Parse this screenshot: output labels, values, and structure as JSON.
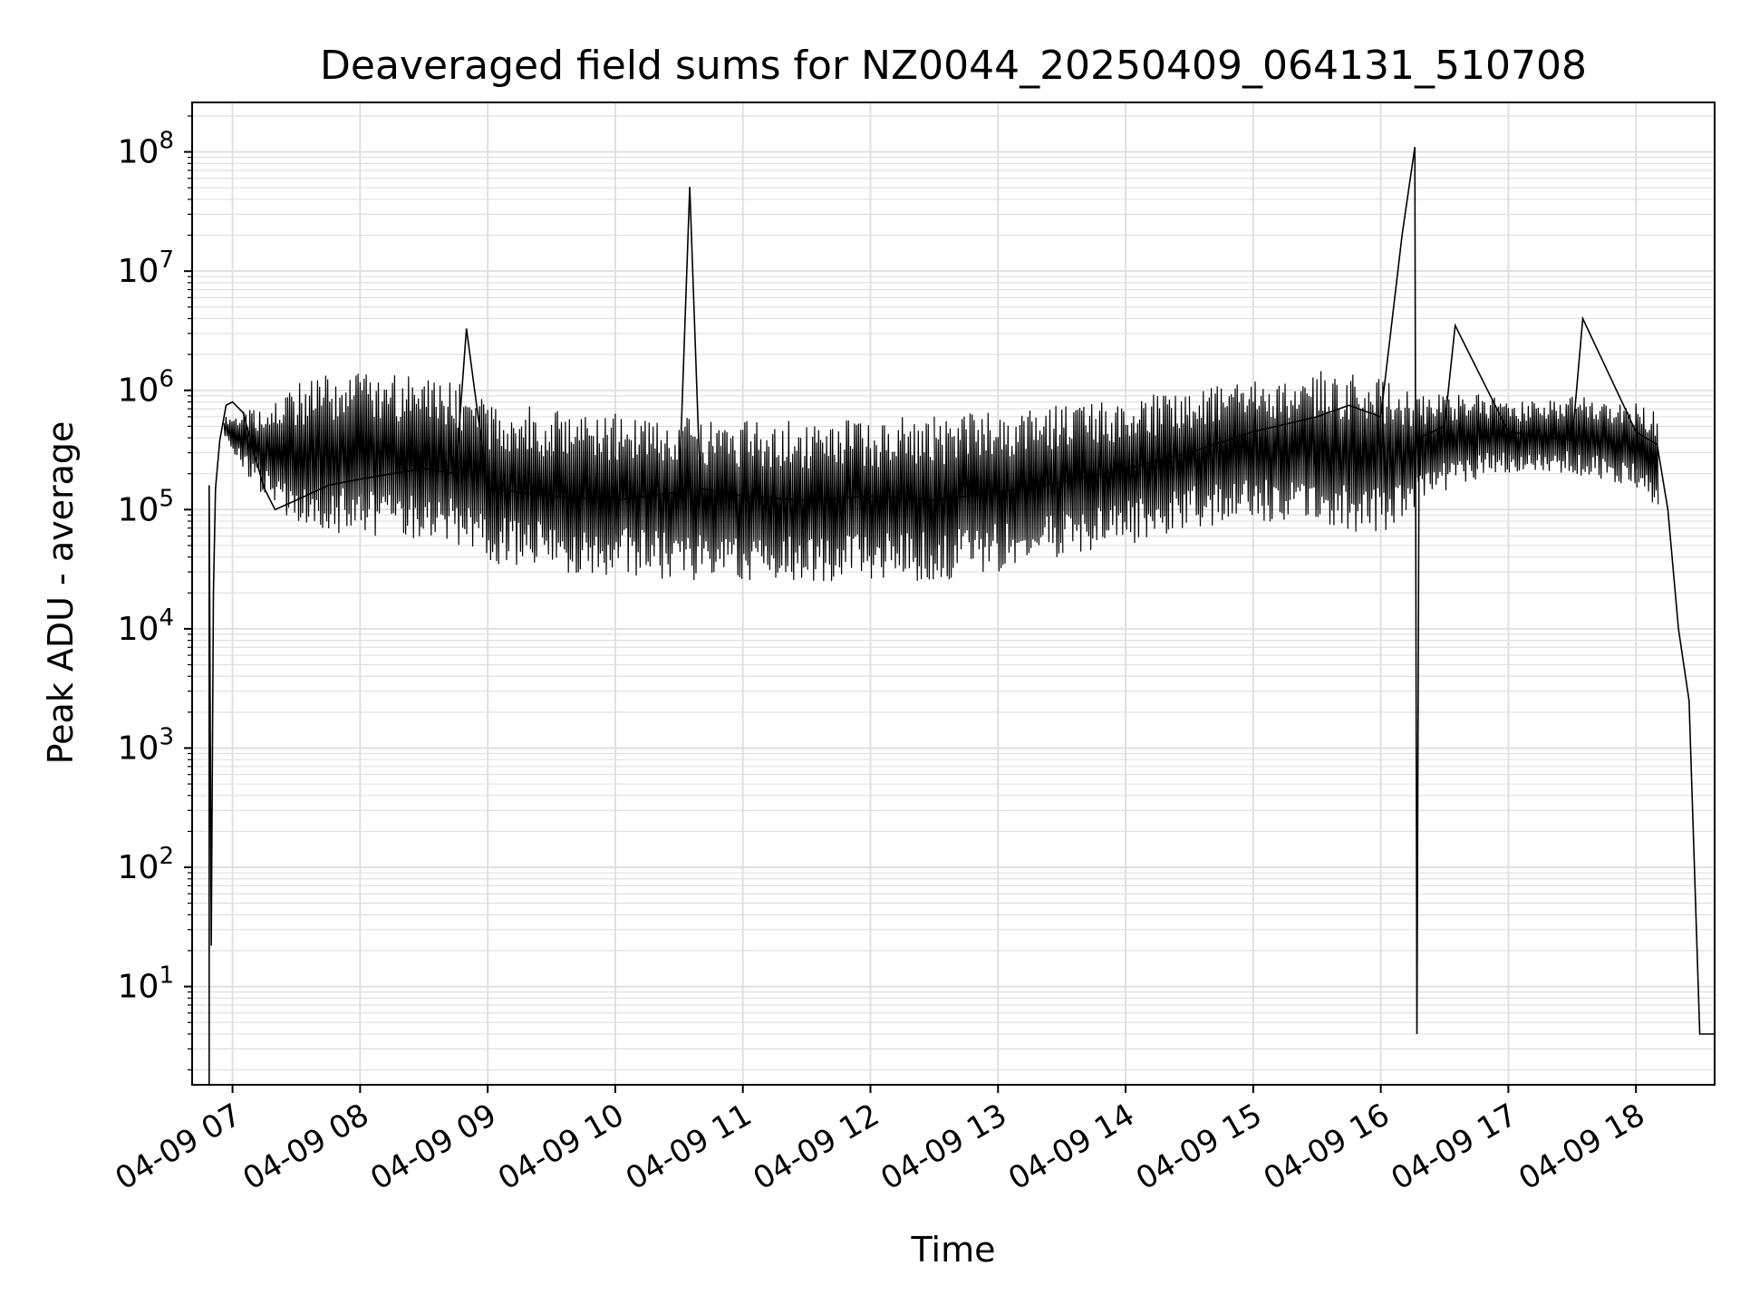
{
  "chart_data": {
    "type": "line",
    "title": "Deaveraged field sums for NZ0044_20250409_064131_510708",
    "xlabel": "Time",
    "ylabel": "Peak ADU - average",
    "xscale": "time",
    "yscale": "log",
    "xlim": [
      "2025-04-09 06:41",
      "2025-04-09 18:37"
    ],
    "ylim": [
      1.5,
      260000000
    ],
    "grid": true,
    "grid_minor": true,
    "line_color": "#000000",
    "grid_color": "#e0e0e0",
    "x_ticks": [
      "2025-04-09 07:00",
      "2025-04-09 08:00",
      "2025-04-09 09:00",
      "2025-04-09 10:00",
      "2025-04-09 11:00",
      "2025-04-09 12:00",
      "2025-04-09 13:00",
      "2025-04-09 14:00",
      "2025-04-09 15:00",
      "2025-04-09 16:00",
      "2025-04-09 17:00",
      "2025-04-09 18:00"
    ],
    "x_tick_labels": [
      "04-09 07",
      "04-09 08",
      "04-09 09",
      "04-09 10",
      "04-09 11",
      "04-09 12",
      "04-09 13",
      "04-09 14",
      "04-09 15",
      "04-09 16",
      "04-09 17",
      "04-09 18"
    ],
    "y_ticks": [
      10,
      100,
      1000,
      10000,
      100000,
      1000000,
      10000000,
      100000000
    ],
    "y_tick_labels": [
      {
        "base": "10",
        "exp": "1"
      },
      {
        "base": "10",
        "exp": "2"
      },
      {
        "base": "10",
        "exp": "3"
      },
      {
        "base": "10",
        "exp": "4"
      },
      {
        "base": "10",
        "exp": "5"
      },
      {
        "base": "10",
        "exp": "6"
      },
      {
        "base": "10",
        "exp": "7"
      },
      {
        "base": "10",
        "exp": "8"
      }
    ],
    "series": [
      {
        "x": [
          "2025-04-09 06:49",
          "2025-04-09 06:49",
          "2025-04-09 06:50",
          "2025-04-09 06:51",
          "2025-04-09 06:52",
          "2025-04-09 06:54",
          "2025-04-09 06:57",
          "2025-04-09 07:00",
          "2025-04-09 07:05",
          "2025-04-09 07:10",
          "2025-04-09 07:15",
          "2025-04-09 07:20",
          "2025-04-09 07:30",
          "2025-04-09 07:45",
          "2025-04-09 08:00",
          "2025-04-09 08:15",
          "2025-04-09 08:30",
          "2025-04-09 08:45",
          "2025-04-09 08:50",
          "2025-04-09 09:00",
          "2025-04-09 09:30",
          "2025-04-09 10:00",
          "2025-04-09 10:30",
          "2025-04-09 10:35",
          "2025-04-09 10:40",
          "2025-04-09 11:00",
          "2025-04-09 11:30",
          "2025-04-09 12:00",
          "2025-04-09 12:30",
          "2025-04-09 13:00",
          "2025-04-09 13:30",
          "2025-04-09 14:00",
          "2025-04-09 14:30",
          "2025-04-09 15:00",
          "2025-04-09 15:30",
          "2025-04-09 15:45",
          "2025-04-09 16:00",
          "2025-04-09 16:10",
          "2025-04-09 16:16",
          "2025-04-09 16:17",
          "2025-04-09 16:18",
          "2025-04-09 16:30",
          "2025-04-09 16:35",
          "2025-04-09 17:00",
          "2025-04-09 17:30",
          "2025-04-09 17:35",
          "2025-04-09 18:00",
          "2025-04-09 18:10",
          "2025-04-09 18:15",
          "2025-04-09 18:20",
          "2025-04-09 18:25",
          "2025-04-09 18:30",
          "2025-04-09 18:37"
        ],
        "y": [
          1.5,
          160000,
          22,
          20000,
          150000,
          380000,
          750000,
          800000,
          650000,
          300000,
          150000,
          100000,
          120000,
          160000,
          180000,
          200000,
          220000,
          200000,
          3300000,
          150000,
          130000,
          120000,
          140000,
          51000000,
          150000,
          130000,
          120000,
          130000,
          120000,
          140000,
          170000,
          220000,
          300000,
          450000,
          600000,
          750000,
          600000,
          20000000,
          110000000,
          4,
          400000,
          500000,
          3500000,
          450000,
          380000,
          4000000,
          450000,
          350000,
          100000,
          10000,
          2500,
          4,
          4
        ]
      }
    ],
    "bands": [
      {
        "x": "2025-04-09 06:56",
        "hi": 600000,
        "lo": 400000
      },
      {
        "x": "2025-04-09 07:10",
        "hi": 700000,
        "lo": 150000
      },
      {
        "x": "2025-04-09 07:25",
        "hi": 1000000,
        "lo": 80000
      },
      {
        "x": "2025-04-09 07:40",
        "hi": 1400000,
        "lo": 60000
      },
      {
        "x": "2025-04-09 08:00",
        "hi": 1400000,
        "lo": 60000
      },
      {
        "x": "2025-04-09 08:20",
        "hi": 1400000,
        "lo": 55000
      },
      {
        "x": "2025-04-09 08:45",
        "hi": 1300000,
        "lo": 50000
      },
      {
        "x": "2025-04-09 09:00",
        "hi": 800000,
        "lo": 35000
      },
      {
        "x": "2025-04-09 09:30",
        "hi": 700000,
        "lo": 30000
      },
      {
        "x": "2025-04-09 10:00",
        "hi": 650000,
        "lo": 28000
      },
      {
        "x": "2025-04-09 10:30",
        "hi": 600000,
        "lo": 25000
      },
      {
        "x": "2025-04-09 11:00",
        "hi": 580000,
        "lo": 25000
      },
      {
        "x": "2025-04-09 11:30",
        "hi": 560000,
        "lo": 25000
      },
      {
        "x": "2025-04-09 12:00",
        "hi": 580000,
        "lo": 25000
      },
      {
        "x": "2025-04-09 12:30",
        "hi": 620000,
        "lo": 25000
      },
      {
        "x": "2025-04-09 13:00",
        "hi": 680000,
        "lo": 30000
      },
      {
        "x": "2025-04-09 13:30",
        "hi": 780000,
        "lo": 40000
      },
      {
        "x": "2025-04-09 14:00",
        "hi": 900000,
        "lo": 50000
      },
      {
        "x": "2025-04-09 14:30",
        "hi": 1050000,
        "lo": 70000
      },
      {
        "x": "2025-04-09 15:00",
        "hi": 1200000,
        "lo": 80000
      },
      {
        "x": "2025-04-09 15:30",
        "hi": 1500000,
        "lo": 70000
      },
      {
        "x": "2025-04-09 16:00",
        "hi": 1300000,
        "lo": 60000
      },
      {
        "x": "2025-04-09 16:20",
        "hi": 900000,
        "lo": 120000
      },
      {
        "x": "2025-04-09 16:45",
        "hi": 1000000,
        "lo": 180000
      },
      {
        "x": "2025-04-09 17:00",
        "hi": 800000,
        "lo": 200000
      },
      {
        "x": "2025-04-09 17:30",
        "hi": 900000,
        "lo": 200000
      },
      {
        "x": "2025-04-09 18:00",
        "hi": 800000,
        "lo": 150000
      },
      {
        "x": "2025-04-09 18:10",
        "hi": 700000,
        "lo": 100000
      }
    ]
  }
}
